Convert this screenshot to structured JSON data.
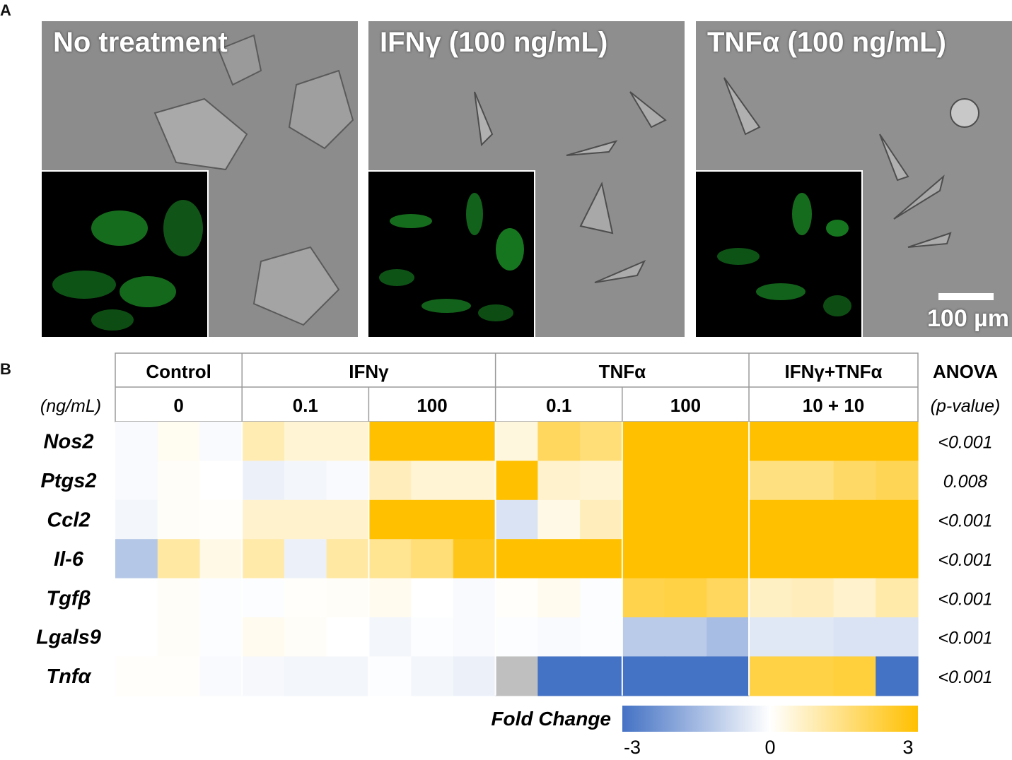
{
  "panel_labels": {
    "a": "A",
    "b": "B"
  },
  "micrographs": [
    {
      "title": "No treatment",
      "scale_bar": ""
    },
    {
      "title": "IFNγ (100 ng/mL)",
      "scale_bar": ""
    },
    {
      "title": "TNFα (100 ng/mL)",
      "scale_bar": "100 µm"
    }
  ],
  "colors": {
    "negative": "#4472C4",
    "zero": "#FFFFFF",
    "positive": "#FFC000",
    "missing": "#BFBFBF"
  },
  "chart_data": {
    "type": "heatmap",
    "treatment_groups": [
      {
        "name": "Control",
        "doses": [
          {
            "label": "0",
            "cols": 3
          }
        ]
      },
      {
        "name": "IFNγ",
        "doses": [
          {
            "label": "0.1",
            "cols": 3
          },
          {
            "label": "100",
            "cols": 3
          }
        ]
      },
      {
        "name": "TNFα",
        "doses": [
          {
            "label": "0.1",
            "cols": 3
          },
          {
            "label": "100",
            "cols": 3
          }
        ]
      },
      {
        "name": "IFNγ+TNFα",
        "doses": [
          {
            "label": "10 + 10",
            "cols": 4
          }
        ]
      }
    ],
    "dose_unit_label": "(ng/mL)",
    "stat_header": "ANOVA",
    "stat_subheader": "(p-value)",
    "genes": [
      "Nos2",
      "Ptgs2",
      "Ccl2",
      "Il-6",
      "Tgfβ",
      "Lgals9",
      "Tnfα"
    ],
    "p_values": [
      "<0.001",
      "0.008",
      "<0.001",
      "<0.001",
      "<0.001",
      "<0.001",
      "<0.001"
    ],
    "values": [
      [
        -0.1,
        0.15,
        -0.1,
        0.9,
        0.5,
        0.5,
        3,
        3,
        3,
        0.4,
        1.9,
        1.6,
        3,
        3,
        3,
        3,
        3,
        3,
        3
      ],
      [
        -0.1,
        0.1,
        0,
        -0.3,
        -0.2,
        -0.1,
        0.8,
        0.5,
        0.5,
        3,
        0.6,
        0.5,
        3,
        3,
        3,
        1.5,
        1.5,
        1.8,
        2.0
      ],
      [
        -0.2,
        0.1,
        0.05,
        0.6,
        0.6,
        0.6,
        3,
        3,
        3,
        -0.6,
        0.3,
        0.8,
        3,
        3,
        3,
        3,
        3,
        3,
        3
      ],
      [
        -1.2,
        1.1,
        0.3,
        1.0,
        -0.3,
        1.1,
        1.3,
        1.6,
        2.7,
        3,
        3,
        3,
        3,
        3,
        3,
        3,
        3,
        3,
        3
      ],
      [
        0,
        0.1,
        -0.05,
        -0.05,
        0.05,
        0.1,
        0.2,
        0,
        -0.1,
        0.05,
        0.2,
        -0.05,
        2.1,
        2.2,
        1.9,
        0.7,
        0.8,
        0.6,
        1.0
      ],
      [
        0,
        0.1,
        -0.05,
        0.2,
        0.1,
        0,
        -0.2,
        -0.05,
        -0.1,
        -0.05,
        -0.1,
        -0.05,
        -1.1,
        -1.1,
        -1.4,
        -0.5,
        -0.5,
        -0.6,
        -0.6
      ],
      [
        0.05,
        0.05,
        -0.1,
        -0.15,
        -0.2,
        -0.2,
        -0.05,
        -0.2,
        -0.3,
        null,
        -3,
        -3,
        -3,
        -3,
        -3,
        2.2,
        2.2,
        2.3,
        -3
      ]
    ],
    "colorbar": {
      "label": "Fold Change",
      "min": -3,
      "max": 3,
      "ticks": [
        "-3",
        "0",
        "3"
      ]
    },
    "vmin": -3,
    "vmax": 3
  }
}
